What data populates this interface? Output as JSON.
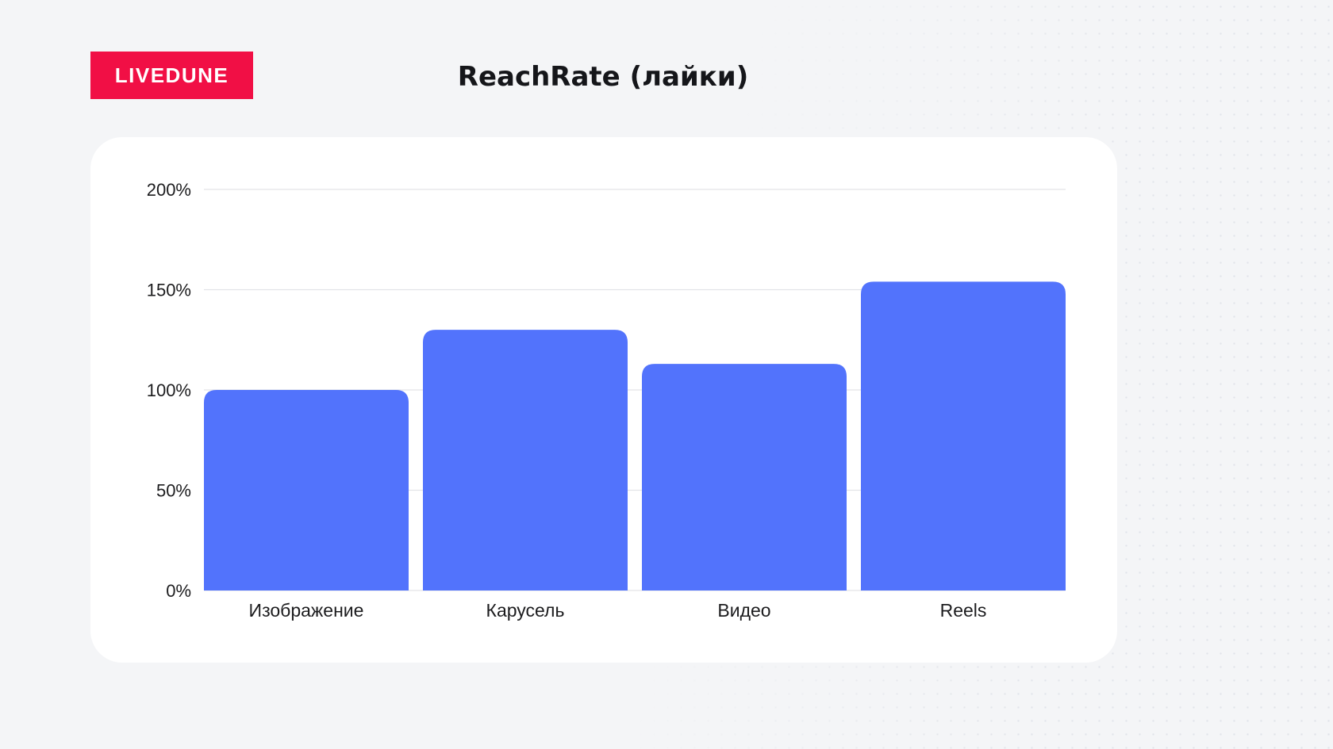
{
  "brand": {
    "logo_text": "LIVEDUNE",
    "logo_color": "#f10f45"
  },
  "chart_data": {
    "type": "bar",
    "title": "ReachRate (лайки)",
    "xlabel": "",
    "ylabel": "",
    "categories": [
      "Изображение",
      "Карусель",
      "Видео",
      "Reels"
    ],
    "values": [
      100,
      130,
      113,
      154
    ],
    "ylim": [
      0,
      200
    ],
    "yticks": [
      0,
      50,
      100,
      150,
      200
    ],
    "ytick_labels": [
      "0%",
      "50%",
      "100%",
      "150%",
      "200%"
    ],
    "grid": true,
    "legend": "none",
    "bar_color": "#5273fc"
  },
  "colors": {
    "background": "#f4f5f7",
    "card": "#ffffff",
    "gridline": "#e3e4e8",
    "text": "#1c1c1e"
  }
}
